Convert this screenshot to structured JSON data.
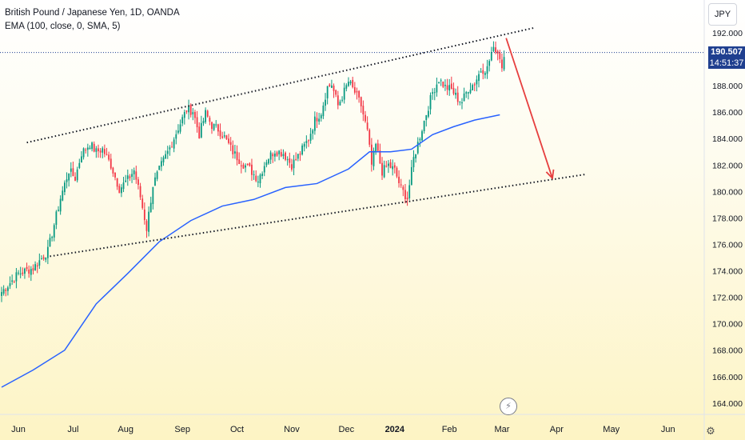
{
  "legend": {
    "symbol": "British Pound / Japanese Yen, 1D, OANDA",
    "indicator": "EMA (100, close, 0, SMA, 5)"
  },
  "currency": "JPY",
  "price_tag": {
    "price": "190.507",
    "countdown": "14:51:37"
  },
  "settings_icon": "gear-icon",
  "event_icon": "lightning-icon",
  "colors": {
    "up": "#089981",
    "down": "#f23645",
    "ema": "#2962ff",
    "arrow": "#e63e3e",
    "trendline": "#131722",
    "price_tag": "#1f3f8f"
  },
  "chart_data": {
    "type": "candlestick",
    "ylim": [
      163,
      193
    ],
    "y_ticks": [
      "164.000",
      "166.000",
      "168.000",
      "170.000",
      "172.000",
      "174.000",
      "176.000",
      "178.000",
      "180.000",
      "182.000",
      "184.000",
      "186.000",
      "188.000",
      "190.000",
      "192.000"
    ],
    "x_ticks": [
      "Jun",
      "Jul",
      "Aug",
      "Sep",
      "Oct",
      "Nov",
      "Dec",
      "2024",
      "Feb",
      "Mar",
      "Apr",
      "May",
      "Jun"
    ],
    "x_ticks_bold": [
      "2024"
    ],
    "current_price": 190.507,
    "close_path": [
      [
        0,
        172.4
      ],
      [
        8,
        173.8
      ],
      [
        15,
        174.2
      ],
      [
        22,
        175.5
      ],
      [
        28,
        179.5
      ],
      [
        32,
        181.6
      ],
      [
        35,
        181.0
      ],
      [
        38,
        182.9
      ],
      [
        42,
        183.6
      ],
      [
        45,
        183.0
      ],
      [
        48,
        183.2
      ],
      [
        52,
        182.0
      ],
      [
        56,
        180.2
      ],
      [
        60,
        180.9
      ],
      [
        63,
        181.6
      ],
      [
        66,
        179.6
      ],
      [
        69,
        177.2
      ],
      [
        72,
        180.5
      ],
      [
        76,
        182.0
      ],
      [
        80,
        183.3
      ],
      [
        84,
        184.8
      ],
      [
        88,
        186.2
      ],
      [
        91,
        186.1
      ],
      [
        94,
        184.3
      ],
      [
        97,
        185.9
      ],
      [
        100,
        185.0
      ],
      [
        103,
        184.7
      ],
      [
        106,
        184.1
      ],
      [
        110,
        183.0
      ],
      [
        114,
        182.2
      ],
      [
        118,
        181.7
      ],
      [
        122,
        180.9
      ],
      [
        126,
        182.4
      ],
      [
        130,
        183.1
      ],
      [
        134,
        182.9
      ],
      [
        138,
        182.0
      ],
      [
        142,
        182.9
      ],
      [
        146,
        184.0
      ],
      [
        149,
        185.4
      ],
      [
        152,
        186.0
      ],
      [
        155,
        187.9
      ],
      [
        157,
        188.1
      ],
      [
        160,
        186.5
      ],
      [
        162,
        187.2
      ],
      [
        165,
        188.3
      ],
      [
        168,
        187.5
      ],
      [
        171,
        186.5
      ],
      [
        174,
        184.5
      ],
      [
        176,
        182.0
      ],
      [
        178,
        183.5
      ],
      [
        181,
        181.5
      ],
      [
        184,
        182.0
      ],
      [
        187,
        181.6
      ],
      [
        190,
        180.2
      ],
      [
        193,
        179.5
      ],
      [
        196,
        182.5
      ],
      [
        199,
        184.2
      ],
      [
        202,
        185.9
      ],
      [
        205,
        187.5
      ],
      [
        208,
        188.5
      ],
      [
        211,
        187.9
      ],
      [
        214,
        187.7
      ],
      [
        217,
        187.0
      ],
      [
        219,
        186.8
      ],
      [
        222,
        187.8
      ],
      [
        225,
        188.2
      ],
      [
        228,
        189.2
      ],
      [
        231,
        189.3
      ],
      [
        233,
        190.5
      ],
      [
        235,
        190.8
      ],
      [
        237,
        190.2
      ],
      [
        238,
        189.4
      ],
      [
        239,
        190.5
      ]
    ],
    "ema_path": [
      [
        0,
        165.2
      ],
      [
        15,
        166.5
      ],
      [
        30,
        168.0
      ],
      [
        45,
        171.5
      ],
      [
        60,
        173.8
      ],
      [
        75,
        176.2
      ],
      [
        90,
        177.8
      ],
      [
        105,
        178.9
      ],
      [
        120,
        179.4
      ],
      [
        135,
        180.3
      ],
      [
        150,
        180.6
      ],
      [
        165,
        181.7
      ],
      [
        175,
        183.0
      ],
      [
        185,
        183.0
      ],
      [
        195,
        183.2
      ],
      [
        205,
        184.3
      ],
      [
        215,
        184.9
      ],
      [
        225,
        185.4
      ],
      [
        237,
        185.8
      ]
    ],
    "trendlines": [
      {
        "from": [
          12,
          183.7
        ],
        "to": [
          254,
          192.4
        ],
        "name": "upper-channel"
      },
      {
        "from": [
          23,
          175.1
        ],
        "to": [
          278,
          181.3
        ],
        "name": "lower-channel"
      }
    ],
    "projection_arrow": {
      "from": [
        240,
        191.6
      ],
      "to": [
        262,
        181.0
      ]
    },
    "x_tick_index": {
      "Jun": 8,
      "Jul": 34,
      "Aug": 59,
      "Sep": 86,
      "Oct": 112,
      "Nov": 138,
      "Dec": 164,
      "2024": 187,
      "Feb": 213,
      "Mar": 238,
      "Apr": 264,
      "May": 290,
      "Jun2": 317
    }
  }
}
